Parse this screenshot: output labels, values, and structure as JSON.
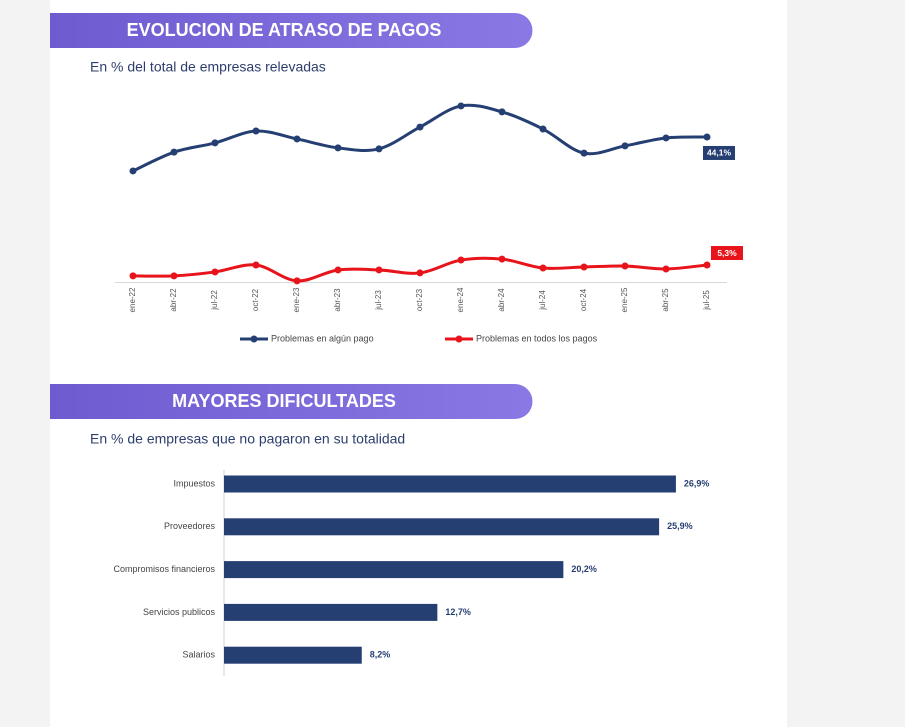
{
  "chart_data": [
    {
      "type": "line",
      "title": "EVOLUCION DE ATRASO DE PAGOS",
      "subtitle": "En % del total de empresas relevadas",
      "categories": [
        "ene-22",
        "abr-22",
        "jul-22",
        "oct-22",
        "ene-23",
        "abr-23",
        "jul-23",
        "oct-23",
        "ene-24",
        "abr-24",
        "jul-24",
        "oct-24",
        "ene-25",
        "abr-25",
        "jul-25"
      ],
      "ylim": [
        0,
        55
      ],
      "legend": "bottom",
      "series": [
        {
          "name": "Problemas en algún pago",
          "color": "#253f73",
          "values": [
            33.8,
            39.5,
            42.3,
            45.9,
            43.5,
            40.8,
            40.5,
            47.1,
            53.5,
            51.7,
            46.5,
            39.2,
            41.4,
            43.8,
            44.1
          ],
          "value_labels": [
            null,
            null,
            null,
            null,
            null,
            null,
            null,
            null,
            null,
            null,
            null,
            null,
            null,
            null,
            "44,1%"
          ]
        },
        {
          "name": "Problemas en todos los pagos",
          "color": "#e8141b",
          "values": [
            2.0,
            2.0,
            3.2,
            5.3,
            0.5,
            3.8,
            3.8,
            2.9,
            6.8,
            7.1,
            4.4,
            4.7,
            5.0,
            4.1,
            5.3
          ],
          "value_labels": [
            null,
            null,
            null,
            null,
            null,
            null,
            null,
            null,
            null,
            null,
            null,
            null,
            null,
            null,
            "5,3%"
          ]
        }
      ]
    },
    {
      "type": "hbar",
      "title": "MAYORES DIFICULTADES",
      "subtitle": "En % de empresas que no pagaron en su totalidad",
      "categories": [
        "Impuestos",
        "Proveedores",
        "Compromisos financieros",
        "Servicios publicos",
        "Salarios"
      ],
      "values": [
        26.9,
        25.9,
        20.2,
        12.7,
        8.2
      ],
      "value_labels": [
        "26,9%",
        "25,9%",
        "20,2%",
        "12,7%",
        "8,2%"
      ],
      "color": "#253f73",
      "xlim": [
        0,
        30
      ]
    }
  ]
}
